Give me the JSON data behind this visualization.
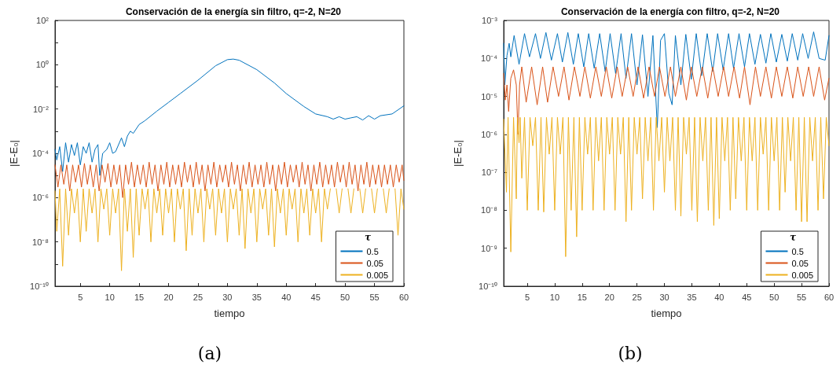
{
  "chart_data": [
    {
      "type": "line",
      "title": "Conservación de la energía sin filtro, q=-2, N=20",
      "xlabel": "tiempo",
      "ylabel": "|E-E₀|",
      "legend_title": "τ",
      "legend": "bottom right",
      "log": "y",
      "grid": false,
      "marker": "none",
      "annotations": [
        "(a)"
      ],
      "xlim": [
        0.7,
        60
      ],
      "xticks": [
        5,
        10,
        15,
        20,
        25,
        30,
        35,
        40,
        45,
        50,
        55,
        60
      ],
      "ylim": [
        1e-10,
        100
      ],
      "yticks": [
        {
          "value": 1e-10,
          "label": "10⁻¹⁰"
        },
        {
          "value": 1e-09,
          "label": null
        },
        {
          "value": 1e-08,
          "label": "10⁻⁸"
        },
        {
          "value": 1e-07,
          "label": null
        },
        {
          "value": 1e-06,
          "label": "10⁻⁶"
        },
        {
          "value": 1e-05,
          "label": null
        },
        {
          "value": 0.0001,
          "label": "10⁻⁴"
        },
        {
          "value": 0.001,
          "label": null
        },
        {
          "value": 0.01,
          "label": "10⁻²"
        },
        {
          "value": 0.1,
          "label": null
        },
        {
          "value": 1,
          "label": "10⁰"
        },
        {
          "value": 10,
          "label": null
        },
        {
          "value": 100,
          "label": "10²"
        }
      ],
      "series": [
        {
          "name": "0.5",
          "color": "#0072bd",
          "x": [
            0.7,
            1,
            1.5,
            2,
            2.5,
            3,
            3.5,
            4,
            4.5,
            5,
            5.5,
            6,
            6.5,
            7,
            7.5,
            8,
            8.3,
            8.8,
            9.5,
            10,
            10.5,
            11,
            12,
            12.5,
            13,
            13.5,
            14,
            15,
            16,
            18,
            20,
            22,
            25,
            28,
            30,
            31,
            32,
            35,
            38,
            40,
            43,
            45,
            47,
            48,
            49,
            50,
            51,
            52,
            53,
            54,
            55,
            56,
            58,
            60
          ],
          "values": [
            0.00015,
            5e-05,
            0.0002,
            1.5e-05,
            0.0003,
            4e-05,
            0.00025,
            8e-05,
            0.0003,
            3e-05,
            0.0002,
            0.0001,
            0.0003,
            4e-05,
            0.00015,
            0.00025,
            1e-05,
            0.0001,
            0.00015,
            0.0003,
            0.0001,
            0.00012,
            0.0005,
            0.0002,
            0.0006,
            0.001,
            0.0008,
            0.002,
            0.003,
            0.008,
            0.02,
            0.05,
            0.2,
            0.9,
            1.7,
            1.8,
            1.6,
            0.6,
            0.15,
            0.05,
            0.013,
            0.006,
            0.0045,
            0.0035,
            0.0045,
            0.0035,
            0.004,
            0.0045,
            0.0032,
            0.005,
            0.0035,
            0.005,
            0.006,
            0.014
          ]
        },
        {
          "name": "0.05",
          "color": "#d95319",
          "x": [
            0.7,
            1.2,
            1.7,
            2.2,
            2.7,
            3.2,
            3.7,
            4.2,
            4.7,
            5.2,
            5.7,
            6.2,
            6.7,
            7.2,
            7.7,
            8.2,
            8.7,
            9.2,
            9.7,
            10.2,
            10.7,
            11.2,
            11.7,
            12.2,
            12.7,
            13.2,
            13.7,
            14.2,
            14.7,
            15.2,
            15.7,
            16.2,
            16.7,
            17.2,
            17.7,
            18.2,
            18.7,
            19.2,
            19.7,
            20.2,
            20.7,
            21.2,
            21.7,
            22.2,
            22.7,
            23.2,
            23.7,
            24.2,
            24.7,
            25.2,
            25.7,
            26.2,
            26.7,
            27.2,
            27.7,
            28.2,
            28.7,
            29.2,
            29.7,
            30.2,
            30.7,
            31.2,
            31.7,
            32.2,
            32.7,
            33.2,
            33.7,
            34.2,
            34.7,
            35.2,
            35.7,
            36.2,
            36.7,
            37.2,
            37.7,
            38.2,
            38.7,
            39.2,
            39.7,
            40.2,
            40.7,
            41.2,
            41.7,
            42.2,
            42.7,
            43.2,
            43.7,
            44.2,
            44.7,
            45.2,
            45.7,
            46.2,
            46.7,
            47.2,
            47.7,
            48.2,
            48.7,
            49.2,
            49.7,
            50.2,
            50.7,
            51.2,
            51.7,
            52.2,
            52.7,
            53.2,
            53.7,
            54.2,
            54.7,
            55.2,
            55.7,
            56.2,
            56.7,
            57.2,
            57.7,
            58.2,
            58.7,
            59.2,
            59.7,
            60
          ],
          "values": [
            3e-05,
            3e-06,
            3e-05,
            4e-06,
            3e-05,
            2e-06,
            3e-05,
            5e-06,
            3e-05,
            3e-06,
            3.5e-05,
            4e-06,
            3e-05,
            3e-06,
            3e-05,
            2e-06,
            3e-05,
            5e-06,
            3.5e-05,
            3e-06,
            3e-05,
            4e-06,
            3e-05,
            1e-06,
            3e-05,
            4e-06,
            4e-05,
            3e-06,
            3e-05,
            4e-06,
            3e-05,
            3e-06,
            4e-05,
            4e-06,
            3e-05,
            2e-06,
            3e-05,
            4e-06,
            4e-05,
            3e-06,
            3e-05,
            4e-06,
            3e-05,
            3e-06,
            4e-05,
            5e-06,
            3e-05,
            3e-06,
            4e-05,
            4e-06,
            3e-05,
            2e-06,
            3e-05,
            4e-06,
            4e-05,
            3e-06,
            3e-05,
            5e-06,
            3e-05,
            3e-06,
            4e-05,
            4e-06,
            3e-05,
            2e-06,
            3e-05,
            4e-06,
            4e-05,
            3e-06,
            3e-05,
            4e-06,
            3e-05,
            3e-06,
            4e-05,
            4e-06,
            3e-05,
            2e-06,
            3e-05,
            4e-06,
            4e-05,
            3e-06,
            3e-05,
            5e-06,
            3e-05,
            3e-06,
            4e-05,
            4e-06,
            3e-05,
            2e-06,
            3e-05,
            4e-06,
            4e-05,
            3e-06,
            3e-05,
            4e-06,
            3e-05,
            3e-06,
            4e-05,
            5e-06,
            3e-05,
            3e-06,
            4e-05,
            4e-06,
            3e-05,
            2e-06,
            3e-05,
            4e-06,
            4e-05,
            3e-06,
            3e-05,
            4e-06,
            3e-05,
            3e-06,
            3e-05,
            4e-06,
            3e-05,
            3e-06,
            3e-05,
            5e-06,
            3e-05,
            6e-06
          ]
        },
        {
          "name": "0.005",
          "color": "#edb120",
          "x": [
            0.7,
            1.0,
            1.5,
            2.0,
            2.5,
            3.0,
            3.5,
            4.0,
            4.5,
            5.0,
            5.5,
            6.0,
            6.5,
            7.0,
            7.5,
            8.0,
            8.5,
            9.0,
            9.5,
            10.0,
            10.5,
            11.0,
            11.5,
            12.0,
            12.5,
            13.0,
            13.5,
            14.0,
            14.5,
            15.0,
            15.5,
            16.0,
            16.5,
            17.0,
            17.5,
            18.0,
            18.5,
            19.0,
            19.5,
            20.0,
            20.5,
            21.0,
            21.5,
            22.0,
            22.5,
            23.0,
            23.5,
            24.0,
            24.5,
            25.0,
            25.5,
            26.0,
            26.5,
            27.0,
            27.5,
            28.0,
            28.5,
            29.0,
            29.5,
            30.0,
            30.5,
            31.0,
            31.5,
            32.0,
            32.5,
            33.0,
            33.5,
            34.0,
            34.5,
            35.0,
            35.5,
            36.0,
            36.5,
            37.0,
            37.5,
            38.0,
            38.5,
            39.0,
            39.5,
            40.0,
            40.5,
            41.0,
            41.5,
            42.0,
            42.5,
            43.0,
            43.5,
            44.0,
            44.5,
            45.0,
            45.5,
            46.0,
            46.5,
            47.0,
            47.5,
            48.0,
            48.5,
            49.0,
            49.5,
            50.0,
            50.5,
            51.0,
            51.5,
            52.0,
            52.5,
            53.0,
            53.5,
            54.0,
            54.5,
            55.0,
            55.5,
            56.0,
            56.5,
            57.0,
            57.5,
            58.0,
            58.5,
            59.0,
            59.5,
            60
          ],
          "values": [
            2e-06,
            3e-08,
            2.5e-06,
            8e-10,
            2.5e-06,
            2e-08,
            2.5e-06,
            2e-07,
            2.5e-06,
            1e-08,
            2.5e-06,
            3e-08,
            2.5e-06,
            2e-07,
            2.5e-06,
            1e-08,
            2.5e-06,
            3e-07,
            2.5e-06,
            2e-08,
            2.5e-06,
            2e-07,
            2.5e-06,
            5e-10,
            2.5e-06,
            3e-08,
            2.5e-06,
            2e-09,
            2.5e-06,
            2e-08,
            2.5e-06,
            3e-07,
            2.5e-06,
            1e-08,
            2.5e-06,
            2e-07,
            2.5e-06,
            2e-08,
            2.5e-06,
            2e-07,
            2.5e-06,
            1e-08,
            2.5e-06,
            3e-07,
            2.5e-06,
            4e-09,
            2.5e-06,
            2e-08,
            2.5e-06,
            2e-07,
            2.5e-06,
            1e-08,
            2.5e-06,
            3e-07,
            2.5e-06,
            2e-08,
            2.5e-06,
            2e-07,
            2.5e-06,
            1e-08,
            2.5e-06,
            3e-07,
            2.5e-06,
            2e-08,
            2.5e-06,
            5e-09,
            2.5e-06,
            2e-07,
            2.5e-06,
            1e-08,
            2.5e-06,
            3e-07,
            2.5e-06,
            2e-08,
            2.5e-06,
            6e-09,
            2.5e-06,
            2e-07,
            2.5e-06,
            2e-08,
            2.5e-06,
            3e-07,
            2.5e-06,
            1e-08,
            2.5e-06,
            2e-07,
            2.5e-06,
            2e-08,
            2.5e-06,
            2e-07,
            2.5e-06,
            1e-08,
            2.5e-06,
            3e-07,
            2.5e-06,
            null,
            2.5e-06,
            2e-07,
            2.5e-06,
            null,
            2.5e-06,
            2e-07,
            2.5e-06,
            null,
            2.5e-06,
            2e-07,
            2.5e-06,
            null,
            2.5e-06,
            2e-07,
            2.5e-06,
            null,
            2.5e-06,
            2e-07,
            2.5e-06,
            null,
            2.5e-06,
            2e-08,
            2.5e-06,
            3e-07
          ]
        }
      ]
    },
    {
      "type": "line",
      "title": "Conservación de la energía con filtro, q=-2, N=20",
      "xlabel": "tiempo",
      "ylabel": "|E-E₀|",
      "legend_title": "τ",
      "legend": "bottom right",
      "log": "y",
      "grid": false,
      "marker": "none",
      "annotations": [
        "(b)"
      ],
      "xlim": [
        0.7,
        60
      ],
      "xticks": [
        5,
        10,
        15,
        20,
        25,
        30,
        35,
        40,
        45,
        50,
        55,
        60
      ],
      "ylim": [
        1e-10,
        0.001
      ],
      "yticks": [
        {
          "value": 1e-10,
          "label": "10⁻¹⁰"
        },
        {
          "value": 1e-09,
          "label": "10⁻⁹"
        },
        {
          "value": 1e-08,
          "label": "10⁻⁸"
        },
        {
          "value": 1e-07,
          "label": "10⁻⁷"
        },
        {
          "value": 1e-06,
          "label": "10⁻⁶"
        },
        {
          "value": 1e-05,
          "label": "10⁻⁵"
        },
        {
          "value": 0.0001,
          "label": "10⁻⁴"
        },
        {
          "value": 0.001,
          "label": "10⁻³"
        }
      ],
      "series": [
        {
          "name": "0.5",
          "color": "#0072bd",
          "x": [
            0.7,
            0.9,
            1.3,
            1.7,
            2.0,
            2.6,
            3.5,
            4.5,
            5.4,
            6.5,
            7.4,
            8.4,
            9.4,
            10.5,
            11.4,
            12.4,
            13.4,
            14.3,
            15.3,
            16.2,
            17.2,
            18.2,
            19.2,
            20.1,
            21.1,
            22.1,
            23.0,
            24.0,
            25.0,
            26.0,
            27.0,
            27.9,
            28.7,
            29.3,
            30.0,
            30.8,
            31.4,
            32.0,
            33.0,
            33.9,
            34.9,
            35.8,
            36.8,
            37.8,
            38.8,
            39.7,
            40.7,
            41.7,
            42.6,
            43.6,
            44.6,
            45.5,
            46.5,
            47.5,
            48.5,
            49.4,
            50.4,
            51.4,
            52.4,
            53.3,
            54.3,
            55.2,
            56.2,
            57.2,
            58.2,
            59.3,
            60
          ],
          "values": [
            0.00025,
            2e-05,
            0.00012,
            0.00025,
            0.00011,
            0.0004,
            7e-05,
            0.00045,
            0.00011,
            0.00045,
            0.0001,
            0.00048,
            9e-05,
            0.00045,
            8e-05,
            0.00048,
            7e-05,
            0.00045,
            6e-05,
            0.00045,
            5.5e-05,
            0.00045,
            4.5e-05,
            0.00045,
            4e-05,
            0.00045,
            3e-05,
            0.00045,
            2e-05,
            0.00042,
            1e-05,
            0.0004,
            1.5e-06,
            0.0003,
            0.00045,
            1.2e-05,
            6e-06,
            0.0004,
            2e-05,
            0.00043,
            2.8e-05,
            0.00045,
            3.5e-05,
            0.00045,
            4.5e-05,
            0.00045,
            5e-05,
            0.00045,
            5.5e-05,
            0.00045,
            6e-05,
            0.00045,
            7e-05,
            0.00043,
            7.5e-05,
            0.00045,
            8e-05,
            0.00043,
            8.5e-05,
            0.00045,
            9e-05,
            0.00045,
            0.0001,
            0.0005,
            0.0001,
            9e-05,
            0.0004
          ]
        },
        {
          "name": "0.05",
          "color": "#d95319",
          "x": [
            0.7,
            1.0,
            1.3,
            1.6,
            2.0,
            2.5,
            3.0,
            3.3,
            3.6,
            4.0,
            4.8,
            5.8,
            6.8,
            7.8,
            8.7,
            9.7,
            10.7,
            11.7,
            12.6,
            13.6,
            14.6,
            15.5,
            16.5,
            17.5,
            18.5,
            19.4,
            20.4,
            21.4,
            22.3,
            23.3,
            24.3,
            25.2,
            26.2,
            27.2,
            28.2,
            29.1,
            30.1,
            31.1,
            32.0,
            33.0,
            34.0,
            34.9,
            35.9,
            36.9,
            37.9,
            38.8,
            39.8,
            40.8,
            41.7,
            42.7,
            43.7,
            44.6,
            45.6,
            46.6,
            47.5,
            48.5,
            49.5,
            50.4,
            51.4,
            52.4,
            53.4,
            54.3,
            55.3,
            56.3,
            57.2,
            58.2,
            59.2,
            60
          ],
          "values": [
            4e-05,
            8e-06,
            2e-05,
            4e-06,
            3e-05,
            5e-05,
            2e-05,
            1e-06,
            2e-05,
            6e-05,
            7e-06,
            6e-05,
            6e-06,
            6e-05,
            7e-06,
            6e-05,
            1e-05,
            6e-05,
            8e-06,
            6e-05,
            1e-05,
            6e-05,
            9e-06,
            6e-05,
            1e-05,
            6e-05,
            9e-06,
            6e-05,
            1e-05,
            6e-05,
            1e-05,
            6e-05,
            9e-06,
            6e-05,
            1e-05,
            6e-05,
            1e-05,
            6e-05,
            1e-05,
            6e-05,
            8e-06,
            6e-05,
            1e-05,
            6e-05,
            9e-06,
            6e-05,
            1e-05,
            6e-05,
            1e-05,
            6e-05,
            9e-06,
            6e-05,
            6e-06,
            6e-05,
            1e-05,
            6e-05,
            9e-06,
            6e-05,
            1e-05,
            6e-05,
            9e-06,
            6e-05,
            1e-05,
            6e-05,
            1e-05,
            6e-05,
            8e-06,
            3e-05
          ]
        },
        {
          "name": "0.005",
          "color": "#edb120",
          "x": [
            0.7,
            1.2,
            1.5,
            2.0,
            2.5,
            3.0,
            3.2,
            3.5,
            3.7,
            4.0,
            4.5,
            5.0,
            5.5,
            6.0,
            6.5,
            7.0,
            7.5,
            8.0,
            8.5,
            9.0,
            9.5,
            10.0,
            10.5,
            11.0,
            11.5,
            12.0,
            12.5,
            13.0,
            13.5,
            14.0,
            14.5,
            15.0,
            15.5,
            16.0,
            16.5,
            17.0,
            17.5,
            18.0,
            18.5,
            19.0,
            19.5,
            20.0,
            20.5,
            21.0,
            21.5,
            22.0,
            22.5,
            23.0,
            23.5,
            24.0,
            24.5,
            25.0,
            25.5,
            26.0,
            26.5,
            27.0,
            27.5,
            28.0,
            28.5,
            29.0,
            29.5,
            30.0,
            30.5,
            31.0,
            31.5,
            32.0,
            32.5,
            33.0,
            33.5,
            34.0,
            34.5,
            35.0,
            35.5,
            36.0,
            36.5,
            37.0,
            37.5,
            38.0,
            38.5,
            39.0,
            39.5,
            40.0,
            40.5,
            41.0,
            41.5,
            42.0,
            42.5,
            43.0,
            43.5,
            44.0,
            44.5,
            45.0,
            45.5,
            46.0,
            46.5,
            47.0,
            47.5,
            48.0,
            48.5,
            49.0,
            49.5,
            50.0,
            50.5,
            51.0,
            51.5,
            52.0,
            52.5,
            53.0,
            53.5,
            54.0,
            54.5,
            55.0,
            55.5,
            56.0,
            56.5,
            57.0,
            57.5,
            58.0,
            58.5,
            59.0,
            59.5,
            60
          ],
          "values": [
            2.5e-06,
            3e-08,
            2.8e-06,
            8e-10,
            2.8e-06,
            2e-08,
            2.8e-06,
            6e-07,
            2.8e-06,
            7e-08,
            2.8e-06,
            1e-08,
            2.8e-06,
            5e-07,
            2.8e-06,
            1e-08,
            2.8e-06,
            9e-09,
            2.8e-06,
            3e-07,
            2.8e-06,
            1e-08,
            2.8e-06,
            3e-07,
            2.8e-06,
            6e-10,
            2.8e-06,
            1e-08,
            2.8e-06,
            2e-09,
            2.8e-06,
            1e-08,
            2.8e-06,
            3e-07,
            2.8e-06,
            1e-08,
            2.8e-06,
            2e-07,
            2.8e-06,
            1e-08,
            2.8e-06,
            3e-07,
            2.8e-06,
            1e-08,
            2.8e-06,
            3e-07,
            2.8e-06,
            5e-09,
            2.8e-06,
            1e-08,
            2.8e-06,
            3e-07,
            2.8e-06,
            2e-08,
            2.8e-06,
            2e-07,
            2.8e-06,
            1e-08,
            2.8e-06,
            2e-07,
            2.8e-06,
            3e-08,
            2.8e-06,
            2e-07,
            2.8e-06,
            1e-08,
            2.8e-06,
            7e-09,
            2.8e-06,
            3e-07,
            2.8e-06,
            1e-08,
            2.8e-06,
            5e-09,
            2.8e-06,
            2e-07,
            2.8e-06,
            1e-08,
            2.8e-06,
            4e-09,
            2.8e-06,
            6e-09,
            2.8e-06,
            2e-07,
            2.8e-06,
            1e-08,
            2.8e-06,
            2e-08,
            2.8e-06,
            2e-07,
            2.8e-06,
            1e-08,
            2.8e-06,
            2e-07,
            2.8e-06,
            1e-08,
            2.8e-06,
            3e-07,
            2.8e-06,
            1e-08,
            2.8e-06,
            2e-07,
            2.8e-06,
            1e-08,
            2.8e-06,
            3e-08,
            2.8e-06,
            2e-07,
            2.8e-06,
            1e-08,
            2.8e-06,
            5e-09,
            2.8e-06,
            5e-09,
            2.8e-06,
            2e-07,
            2.8e-06,
            1e-08,
            2.8e-06,
            2e-08,
            2.8e-06,
            5e-07
          ]
        }
      ]
    }
  ]
}
